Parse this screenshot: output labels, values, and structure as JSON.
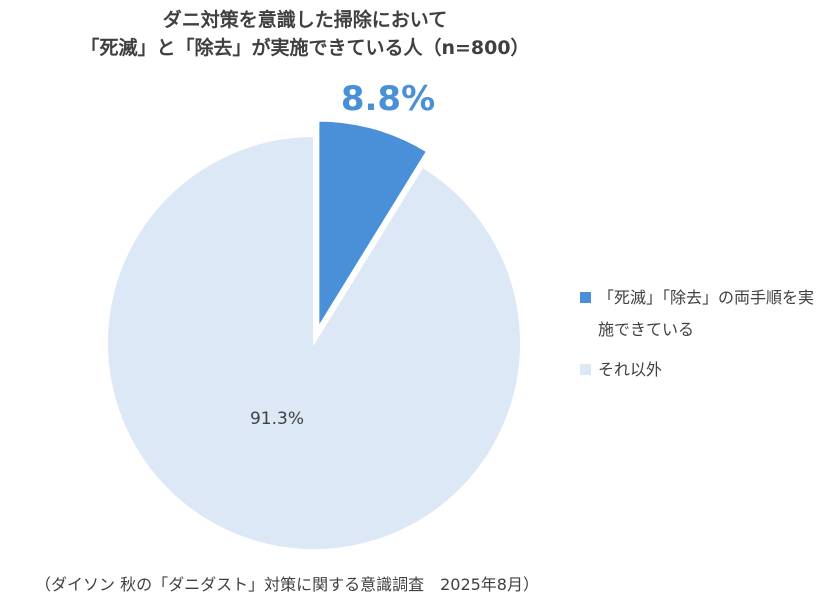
{
  "title": {
    "line1": "ダニ対策を意識した掃除において",
    "line2": "「死滅」と「除去」が実施できている人（n=800）"
  },
  "source": "（ダイソン 秋の「ダニダスト」対策に関する意識調査　2025年8月）",
  "colors": {
    "slice_main": "#4a90d9",
    "slice_other": "#dce8f5",
    "label_main": "#4a90d9",
    "text": "#404040"
  },
  "chart_data": {
    "type": "pie",
    "title": "ダニ対策を意識した掃除において「死滅」と「除去」が実施できている人（n=800）",
    "slices": [
      {
        "label": "「死滅」「除去」の両手順を実施できている",
        "value": 8.8,
        "display": "8.8%",
        "color": "#4a90d9",
        "exploded": true
      },
      {
        "label": "それ以外",
        "value": 91.3,
        "display": "91.3%",
        "color": "#dce8f5",
        "exploded": false
      }
    ],
    "legend_position": "right"
  }
}
